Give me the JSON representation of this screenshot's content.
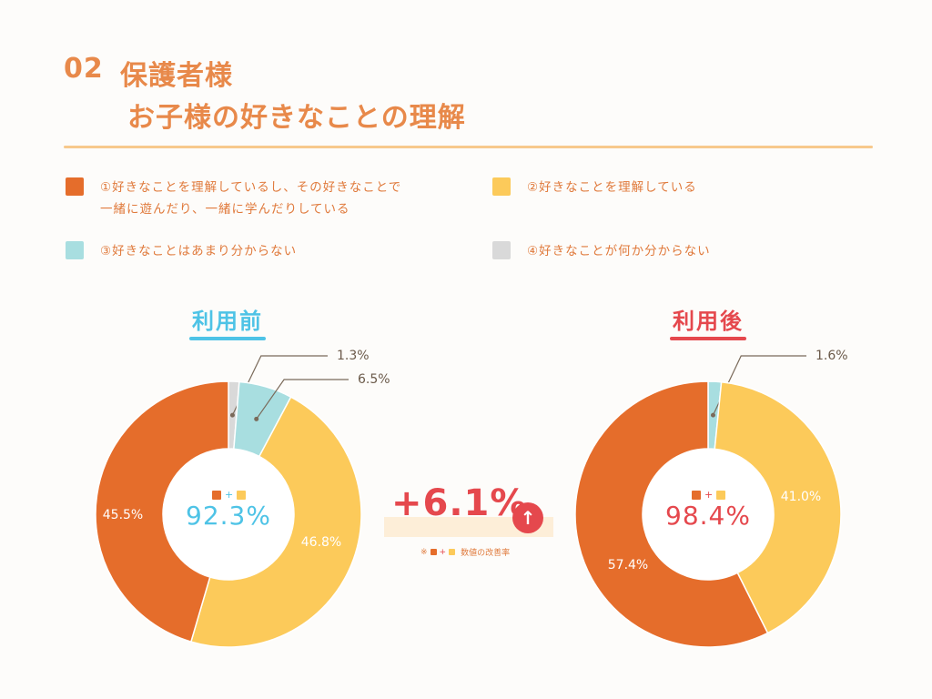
{
  "title": {
    "number": "02",
    "line1": "保護者様",
    "line2": "お子様の好きなことの理解"
  },
  "legend": [
    {
      "line1": "①好きなことを理解しているし、その好きなことで",
      "line2": "一緒に遊んだり、一緒に学んだりしている",
      "color": "#e56d2b"
    },
    {
      "line1": "②好きなことを理解している",
      "line2": "",
      "color": "#fcca5a"
    },
    {
      "line1": "③好きなことはあまり分からない",
      "line2": "",
      "color": "#a8dee0"
    },
    {
      "line1": "④好きなことが何か分からない",
      "line2": "",
      "color": "#d9d9d9"
    }
  ],
  "colors": {
    "title": "#e8894a",
    "before_accent": "#4ec3e6",
    "after_accent": "#e5484d",
    "rule": "#f7c98c"
  },
  "chart_data": [
    {
      "type": "pie",
      "title": "利用前",
      "donut": true,
      "categories": [
        "①",
        "②",
        "③",
        "④"
      ],
      "values": [
        45.5,
        46.8,
        6.5,
        1.3
      ],
      "labels": [
        "45.5%",
        "46.8%",
        "6.5%",
        "1.3%"
      ],
      "colors": [
        "#e56d2b",
        "#fcca5a",
        "#a8dee0",
        "#d9d9d9"
      ],
      "center_label": "92.3%"
    },
    {
      "type": "pie",
      "title": "利用後",
      "donut": true,
      "categories": [
        "①",
        "②",
        "③"
      ],
      "values": [
        57.4,
        41.0,
        1.6
      ],
      "labels": [
        "57.4%",
        "41.0%",
        "1.6%"
      ],
      "colors": [
        "#e56d2b",
        "#fcca5a",
        "#a8dee0"
      ],
      "center_label": "98.4%"
    }
  ],
  "improvement": {
    "value": "+6.1%",
    "arrow": "↑",
    "note": "数値の改善率",
    "note_prefix": "※"
  },
  "mini_plus": "+"
}
